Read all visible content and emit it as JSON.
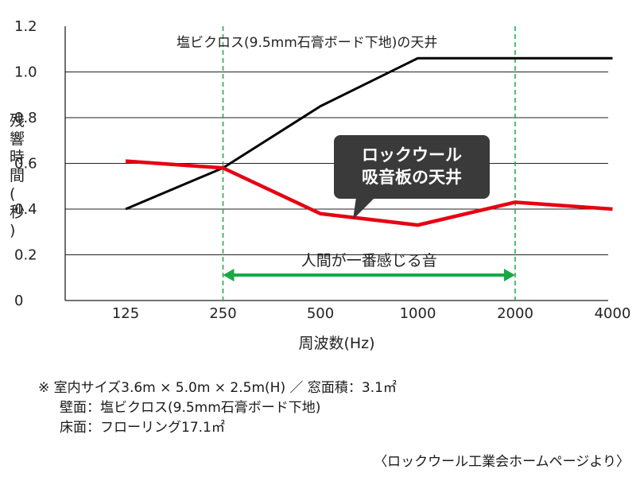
{
  "chart_data": {
    "type": "line",
    "categories": [
      "125",
      "250",
      "500",
      "1000",
      "2000",
      "4000"
    ],
    "xlabel": "周波数(Hz)",
    "ylabel": "残響時間(秒)",
    "yticks": [
      "0",
      "0.2",
      "0.4",
      "0.6",
      "0.8",
      "1.0",
      "1.2"
    ],
    "ylim": [
      0,
      1.2
    ],
    "grid": "horizontal",
    "series": [
      {
        "name": "塩ビクロス(9.5mm石膏ボード下地)の天井",
        "color": "#000000",
        "values": [
          0.4,
          0.58,
          0.85,
          1.06,
          1.06,
          1.06
        ]
      },
      {
        "name": "ロックウール吸音板の天井",
        "color": "#e60012",
        "values": [
          0.61,
          0.58,
          0.38,
          0.33,
          0.43,
          0.4
        ]
      }
    ],
    "callout_lines": [
      "ロックウール",
      "吸音板の天井"
    ],
    "range": {
      "from": "250",
      "to": "2000",
      "label": "人間が一番感じる音",
      "color": "#1aa845"
    }
  },
  "notes": [
    "※ 室内サイズ3.6m × 5.0m × 2.5m(H) ／ 窓面積：3.1㎡",
    "壁面：塩ビクロス(9.5mm石膏ボード下地)",
    "床面：フローリング17.1㎡"
  ],
  "source": "〈ロックウール工業会ホームページより〉"
}
